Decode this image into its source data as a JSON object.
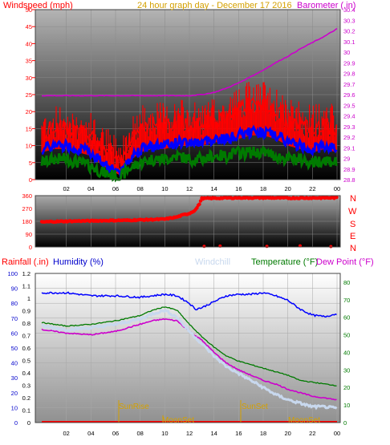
{
  "colors": {
    "wind": "#ff0000",
    "gust_band": "#ff0000",
    "avg_wind": "#0000ff",
    "low_wind": "#007a00",
    "barometer": "#cc00cc",
    "direction": "#ff0000",
    "humidity": "#0000ff",
    "windchill": "#c8d8ee",
    "temperature": "#007a00",
    "dewpoint": "#cc00cc",
    "rain": "#ff0000",
    "annot": "#d4a000",
    "title": "#d4a000"
  },
  "header1": {
    "left": "Windspeed (mph)",
    "center": "24 hour graph day - December 17 2016",
    "right": "Barometer (.in)"
  },
  "header3": {
    "rain": "Rainfall (.in)",
    "humidity": "Humidity (%)",
    "windchill": "Windchill",
    "temperature": "Temperature (°F)",
    "dewpoint": "Dew Point (°F)"
  },
  "compass": [
    "N",
    "W",
    "S",
    "E",
    "N"
  ],
  "annotations": {
    "sunrise": "SunRise",
    "sunset": "SunSet",
    "moonset1": "MoonSet",
    "moonset2": "MoonSet"
  },
  "chart_data": [
    {
      "type": "line",
      "id": "wind_barometer",
      "x_ticks": [
        "02",
        "04",
        "06",
        "08",
        "10",
        "12",
        "14",
        "16",
        "18",
        "20",
        "22",
        "00"
      ],
      "y_left_ticks": [
        "0",
        "5",
        "10",
        "15",
        "20",
        "25",
        "30",
        "35",
        "40",
        "45",
        "50"
      ],
      "y_right_ticks": [
        "28.8",
        "28.9",
        "29",
        "29.1",
        "29.2",
        "29.3",
        "29.4",
        "29.5",
        "29.6",
        "29.7",
        "29.8",
        "29.9",
        "30",
        "30.1",
        "30.2",
        "30.3",
        "30.4"
      ],
      "ylim_left": [
        0,
        50
      ],
      "ylim_right": [
        28.8,
        30.4
      ],
      "series": [
        {
          "id": "gust",
          "x": [
            0,
            1,
            2,
            3,
            4,
            5,
            6,
            6.5,
            7,
            8,
            9,
            10,
            11,
            12,
            13,
            14,
            15,
            16,
            17,
            18,
            19,
            20,
            21,
            22,
            23,
            24
          ],
          "values": [
            14,
            15,
            15,
            14,
            13,
            9,
            7,
            6,
            11,
            15,
            16,
            16,
            17,
            16,
            16,
            17,
            18,
            21,
            22,
            22,
            20,
            17,
            16,
            15,
            16,
            15
          ]
        },
        {
          "id": "avg",
          "x": [
            0,
            1,
            2,
            3,
            4,
            5,
            6,
            6.5,
            7,
            8,
            9,
            10,
            11,
            12,
            13,
            14,
            15,
            16,
            17,
            18,
            19,
            20,
            21,
            22,
            23,
            24
          ],
          "values": [
            9,
            10,
            10,
            9,
            8,
            5,
            3,
            2,
            6,
            9,
            10,
            10,
            11,
            11,
            11,
            12,
            12,
            13,
            14,
            14,
            13,
            11,
            10,
            9,
            10,
            9
          ]
        },
        {
          "id": "low",
          "x": [
            0,
            1,
            2,
            3,
            4,
            5,
            6,
            6.5,
            7,
            8,
            9,
            10,
            11,
            12,
            13,
            14,
            15,
            16,
            17,
            18,
            19,
            20,
            21,
            22,
            23,
            24
          ],
          "values": [
            5,
            6,
            6,
            5,
            4,
            2,
            1,
            1,
            3,
            5,
            6,
            6,
            7,
            6,
            6,
            7,
            7,
            8,
            8,
            8,
            7,
            6,
            6,
            5,
            6,
            5
          ]
        },
        {
          "id": "barometer",
          "x": [
            0,
            2,
            4,
            6,
            8,
            10,
            12,
            13,
            14,
            15,
            16,
            17,
            18,
            19,
            20,
            21,
            22,
            23,
            24
          ],
          "values": [
            29.59,
            29.59,
            29.59,
            29.59,
            29.59,
            29.59,
            29.59,
            29.6,
            29.62,
            29.66,
            29.71,
            29.77,
            29.83,
            29.9,
            29.96,
            30.03,
            30.09,
            30.15,
            30.22
          ]
        }
      ]
    },
    {
      "type": "scatter",
      "id": "wind_direction",
      "y_ticks": [
        "0",
        "90",
        "180",
        "270",
        "360"
      ],
      "ylim": [
        0,
        360
      ],
      "series": [
        {
          "id": "direction",
          "x": [
            0,
            1,
            2,
            3,
            4,
            5,
            6,
            7,
            8,
            9,
            10,
            11,
            11.5,
            12,
            12.5,
            12.8,
            13,
            14,
            16,
            18,
            20,
            22,
            24
          ],
          "values": [
            175,
            178,
            180,
            182,
            183,
            185,
            186,
            187,
            190,
            192,
            195,
            210,
            225,
            235,
            260,
            300,
            340,
            342,
            345,
            345,
            343,
            344,
            345
          ]
        }
      ]
    },
    {
      "type": "line",
      "id": "temp_humidity_rain",
      "y_left_ticks": [
        "0",
        "10",
        "20",
        "30",
        "40",
        "50",
        "60",
        "70",
        "80",
        "90",
        "100"
      ],
      "y_rain_ticks": [
        "0",
        "0.1",
        "0.2",
        "0.3",
        "0.4",
        "0.5",
        "0.6",
        "0.7",
        "0.8",
        "0.9",
        "1",
        "1.1",
        "1.2"
      ],
      "y_right_ticks": [
        "0",
        "10",
        "20",
        "30",
        "40",
        "50",
        "60",
        "70",
        "80"
      ],
      "ylim_left": [
        0,
        100
      ],
      "ylim_right": [
        0,
        85
      ],
      "series": [
        {
          "id": "humidity",
          "x": [
            0,
            2,
            4,
            6,
            8,
            10,
            11,
            12,
            12.5,
            13,
            14,
            15,
            16,
            17,
            18,
            19,
            20,
            21,
            22,
            23,
            24
          ],
          "values": [
            87,
            87,
            85,
            85,
            84,
            86,
            85,
            80,
            76,
            77,
            81,
            85,
            86,
            86,
            87,
            85,
            82,
            76,
            72,
            71,
            73
          ]
        },
        {
          "id": "temperature",
          "x": [
            0,
            2,
            4,
            6,
            8,
            9,
            10,
            11,
            12,
            13,
            14,
            15,
            16,
            17,
            18,
            19,
            20,
            21,
            22,
            23,
            24
          ],
          "values": [
            57,
            55,
            56,
            58,
            61,
            64,
            66,
            64,
            56,
            49,
            43,
            38,
            35,
            33,
            31,
            29,
            27,
            24,
            23,
            22,
            21
          ]
        },
        {
          "id": "dewpoint",
          "x": [
            0,
            2,
            4,
            6,
            8,
            9,
            10,
            11,
            12,
            13,
            14,
            15,
            16,
            17,
            18,
            19,
            20,
            21,
            22,
            23,
            24
          ],
          "values": [
            53,
            51,
            50,
            52,
            56,
            58,
            59,
            58,
            52,
            47,
            40,
            34,
            30,
            27,
            24,
            22,
            19,
            17,
            15,
            14,
            13
          ]
        },
        {
          "id": "windchill",
          "x": [
            0,
            2,
            4,
            6,
            8,
            9,
            10,
            11,
            12,
            13,
            14,
            15,
            16,
            17,
            18,
            19,
            20,
            21,
            22,
            23,
            24
          ],
          "values": [
            55,
            53,
            54,
            56,
            59,
            62,
            64,
            60,
            52,
            45,
            38,
            32,
            28,
            24,
            20,
            16,
            13,
            11,
            9,
            9,
            8
          ]
        },
        {
          "id": "rain",
          "x": [
            0,
            24
          ],
          "values": [
            0,
            0
          ]
        }
      ]
    }
  ]
}
